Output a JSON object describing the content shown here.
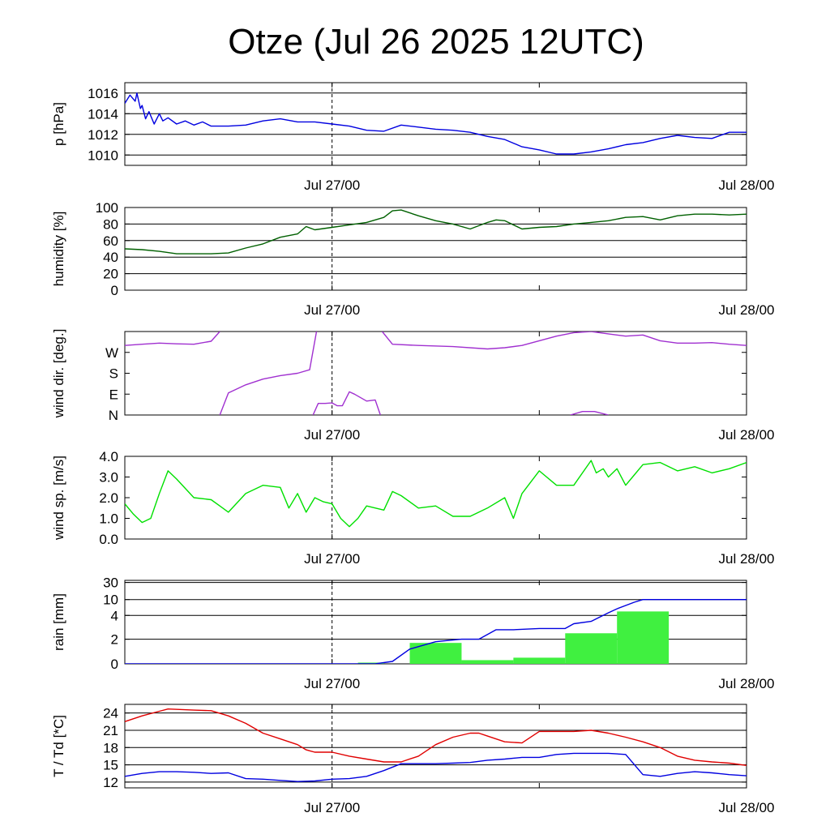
{
  "title": "Otze (Jul 26 2025 12UTC)",
  "x_tick_labels": [
    "Jul 27/00",
    "Jul 28/00"
  ],
  "time_range_hours": [
    0,
    36
  ],
  "marker_hour": 12,
  "chart_data": [
    {
      "type": "line",
      "ylabel": "p [hPa]",
      "ylim": [
        1009,
        1017
      ],
      "yticks": [
        1010,
        1012,
        1014,
        1016
      ],
      "ytick_labels": [
        "1010",
        "1012",
        "1014",
        "1016"
      ],
      "grid": true,
      "color": "#0000e0",
      "series": [
        {
          "x": [
            0,
            0.3,
            0.6,
            0.7,
            0.9,
            1.0,
            1.2,
            1.4,
            1.7,
            2.0,
            2.2,
            2.5,
            3.0,
            3.5,
            4.0,
            4.5,
            5.0,
            6,
            7,
            8,
            9,
            10,
            11,
            12,
            13,
            14,
            15,
            16,
            17,
            18,
            19,
            20,
            21,
            22,
            23,
            24,
            25,
            26,
            27,
            28,
            29,
            30,
            31,
            32,
            33,
            34,
            35,
            36
          ],
          "y": [
            1015.0,
            1015.8,
            1015.2,
            1016.0,
            1014.5,
            1014.8,
            1013.5,
            1014.2,
            1013.0,
            1014.0,
            1013.3,
            1013.6,
            1013.0,
            1013.3,
            1012.9,
            1013.2,
            1012.8,
            1012.8,
            1012.9,
            1013.3,
            1013.5,
            1013.2,
            1013.2,
            1013.0,
            1012.8,
            1012.4,
            1012.3,
            1012.9,
            1012.7,
            1012.5,
            1012.4,
            1012.2,
            1011.8,
            1011.5,
            1010.8,
            1010.5,
            1010.1,
            1010.1,
            1010.3,
            1010.6,
            1011.0,
            1011.2,
            1011.6,
            1011.9,
            1011.7,
            1011.6,
            1012.2,
            1012.2
          ]
        }
      ]
    },
    {
      "type": "line",
      "ylabel": "humidity [%]",
      "ylim": [
        0,
        100
      ],
      "yticks": [
        0,
        20,
        40,
        60,
        80,
        100
      ],
      "ytick_labels": [
        "0",
        "20",
        "40",
        "60",
        "80",
        "100"
      ],
      "grid": true,
      "color": "#006000",
      "series": [
        {
          "x": [
            0,
            1,
            2,
            3,
            4,
            5,
            6,
            7,
            8,
            9,
            10,
            10.5,
            11,
            12,
            13,
            14,
            15,
            15.5,
            16,
            17,
            18,
            19,
            20,
            21,
            21.5,
            22,
            23,
            24,
            25,
            26,
            27,
            28,
            29,
            30,
            31,
            32,
            33,
            34,
            35,
            36
          ],
          "y": [
            50,
            49,
            47,
            44,
            44,
            44,
            45,
            51,
            56,
            64,
            68,
            77,
            73,
            76,
            79,
            82,
            88,
            96,
            97,
            90,
            84,
            80,
            74,
            82,
            85,
            84,
            74,
            76,
            77,
            80,
            82,
            84,
            88,
            89,
            85,
            90,
            92,
            92,
            91,
            92
          ]
        }
      ]
    },
    {
      "type": "line",
      "ylabel": "wind dir. [deg.]",
      "ylim": [
        0,
        360
      ],
      "yticks": [
        0,
        90,
        180,
        270
      ],
      "ytick_labels": [
        "N",
        "E",
        "S",
        "W"
      ],
      "grid": false,
      "color": "#a030d0",
      "series": [
        {
          "x": [
            0,
            1,
            2,
            3,
            4,
            5,
            5.5
          ],
          "y": [
            300,
            305,
            310,
            307,
            305,
            318,
            360
          ]
        },
        {
          "x": [
            5.5,
            6,
            7,
            8,
            9,
            10,
            10.7,
            11.1
          ],
          "y": [
            0,
            95,
            130,
            155,
            170,
            180,
            195,
            360
          ]
        },
        {
          "x": [
            10.9,
            11.2,
            11.6,
            12.0,
            12.3,
            12.6,
            13,
            13.3,
            14,
            14.5,
            14.8
          ],
          "y": [
            0,
            50,
            50,
            52,
            40,
            40,
            100,
            90,
            60,
            65,
            0
          ]
        },
        {
          "x": [
            14.9,
            15.5,
            17,
            19,
            21,
            22,
            23,
            24,
            25,
            26,
            27,
            28,
            29,
            30,
            31,
            32,
            33,
            34,
            35,
            36
          ],
          "y": [
            360,
            305,
            300,
            295,
            285,
            290,
            300,
            320,
            340,
            355,
            360,
            350,
            340,
            345,
            320,
            310,
            310,
            312,
            305,
            300
          ]
        },
        {
          "x": [
            25.8,
            26.5,
            27.2,
            28
          ],
          "y": [
            0,
            15,
            15,
            0
          ]
        }
      ]
    },
    {
      "type": "line",
      "ylabel": "wind sp. [m/s]",
      "ylim": [
        0,
        4
      ],
      "yticks": [
        0,
        1,
        2,
        3,
        4
      ],
      "ytick_labels": [
        "0.0",
        "1.0",
        "2.0",
        "3.0",
        "4.0"
      ],
      "grid": false,
      "color": "#00e000",
      "series": [
        {
          "x": [
            0,
            0.5,
            1,
            1.5,
            2,
            2.5,
            3,
            4,
            5,
            5.5,
            6,
            7,
            8,
            9,
            9.5,
            10,
            10.5,
            11,
            11.5,
            12,
            12.5,
            13,
            13.5,
            14,
            15,
            15.5,
            16,
            17,
            18,
            19,
            20,
            21,
            22,
            22.5,
            23,
            24,
            25,
            26,
            27,
            27.3,
            27.7,
            28,
            28.5,
            29,
            29.5,
            30,
            31,
            32,
            33,
            34,
            35,
            36
          ],
          "y": [
            1.7,
            1.2,
            0.8,
            1.0,
            2.2,
            3.3,
            2.9,
            2.0,
            1.9,
            1.6,
            1.3,
            2.2,
            2.6,
            2.5,
            1.5,
            2.2,
            1.3,
            2.0,
            1.8,
            1.7,
            1.0,
            0.6,
            1.0,
            1.6,
            1.4,
            2.3,
            2.1,
            1.5,
            1.6,
            1.1,
            1.1,
            1.5,
            2.0,
            1.0,
            2.2,
            3.3,
            2.6,
            2.6,
            3.8,
            3.2,
            3.4,
            3.0,
            3.4,
            2.6,
            3.1,
            3.6,
            3.7,
            3.3,
            3.5,
            3.2,
            3.4,
            3.7
          ]
        }
      ]
    },
    {
      "type": "bar+line",
      "ylabel": "rain [mm]",
      "ylim": [
        0,
        30
      ],
      "yticks": [
        0,
        2,
        4,
        10,
        30
      ],
      "ytick_labels": [
        "0",
        "2",
        "4",
        "10",
        "30"
      ],
      "scale": "sqrt-like",
      "grid": true,
      "bar_color": "#40f040",
      "line_color": "#0000e0",
      "bars": [
        {
          "x0": 13.5,
          "x1": 15.0,
          "value": 0.1
        },
        {
          "x0": 16.5,
          "x1": 19.5,
          "value": 1.7
        },
        {
          "x0": 19.5,
          "x1": 22.5,
          "value": 0.3
        },
        {
          "x0": 22.5,
          "x1": 25.5,
          "value": 0.5
        },
        {
          "x0": 25.5,
          "x1": 28.5,
          "value": 2.5
        },
        {
          "x0": 28.5,
          "x1": 31.5,
          "value": 5.5
        }
      ],
      "series": [
        {
          "x": [
            0,
            14.5,
            15.5,
            16.5,
            18,
            19.5,
            20.5,
            21.5,
            22.5,
            24,
            24.5,
            25.5,
            26,
            27,
            28,
            28.5,
            29.5,
            30,
            31,
            33,
            36
          ],
          "y": [
            0,
            0,
            0.2,
            1.2,
            1.8,
            2.0,
            2.0,
            2.8,
            2.8,
            2.9,
            2.9,
            2.9,
            3.3,
            3.5,
            5.0,
            6.5,
            9.0,
            10.0,
            10.0,
            10.0,
            10.0
          ]
        }
      ]
    },
    {
      "type": "line",
      "ylabel": "T / Td [*C]",
      "ylim": [
        11,
        25.5
      ],
      "yticks": [
        12,
        15,
        18,
        21,
        24
      ],
      "ytick_labels": [
        "12",
        "15",
        "18",
        "21",
        "24"
      ],
      "grid": true,
      "series": [
        {
          "color": "#e00000",
          "x": [
            0,
            1,
            2,
            2.5,
            4,
            5,
            6,
            7,
            8,
            9,
            10,
            10.5,
            11,
            12,
            13,
            14,
            15,
            16,
            17,
            18,
            19,
            20,
            20.5,
            21,
            22,
            23,
            24,
            25,
            26,
            27,
            28,
            29,
            30,
            31,
            32,
            33,
            34,
            35,
            36
          ],
          "y": [
            22.5,
            23.5,
            24.3,
            24.7,
            24.5,
            24.4,
            23.5,
            22.2,
            20.5,
            19.5,
            18.5,
            17.6,
            17.2,
            17.2,
            16.5,
            16.0,
            15.5,
            15.5,
            16.5,
            18.5,
            19.8,
            20.5,
            20.5,
            20.0,
            19.0,
            18.8,
            20.8,
            20.8,
            20.8,
            21.0,
            20.5,
            19.8,
            19.0,
            18.0,
            16.5,
            15.8,
            15.5,
            15.3,
            14.9
          ]
        },
        {
          "color": "#0000e0",
          "x": [
            0,
            1,
            2,
            3,
            4,
            5,
            6,
            7,
            8,
            9,
            10,
            11,
            12,
            13,
            14,
            15,
            16,
            17,
            18,
            19,
            20,
            21,
            22,
            23,
            24,
            25,
            26,
            27,
            28,
            29,
            30,
            31,
            32,
            33,
            34,
            35,
            36
          ],
          "y": [
            13.0,
            13.5,
            13.8,
            13.8,
            13.7,
            13.5,
            13.6,
            12.6,
            12.5,
            12.3,
            12.1,
            12.2,
            12.5,
            12.6,
            13.0,
            14.0,
            15.2,
            15.2,
            15.2,
            15.3,
            15.4,
            15.8,
            16.0,
            16.3,
            16.3,
            16.8,
            17.0,
            17.0,
            17.0,
            16.8,
            13.3,
            13.0,
            13.5,
            13.8,
            13.6,
            13.3,
            13.1
          ]
        }
      ]
    }
  ]
}
